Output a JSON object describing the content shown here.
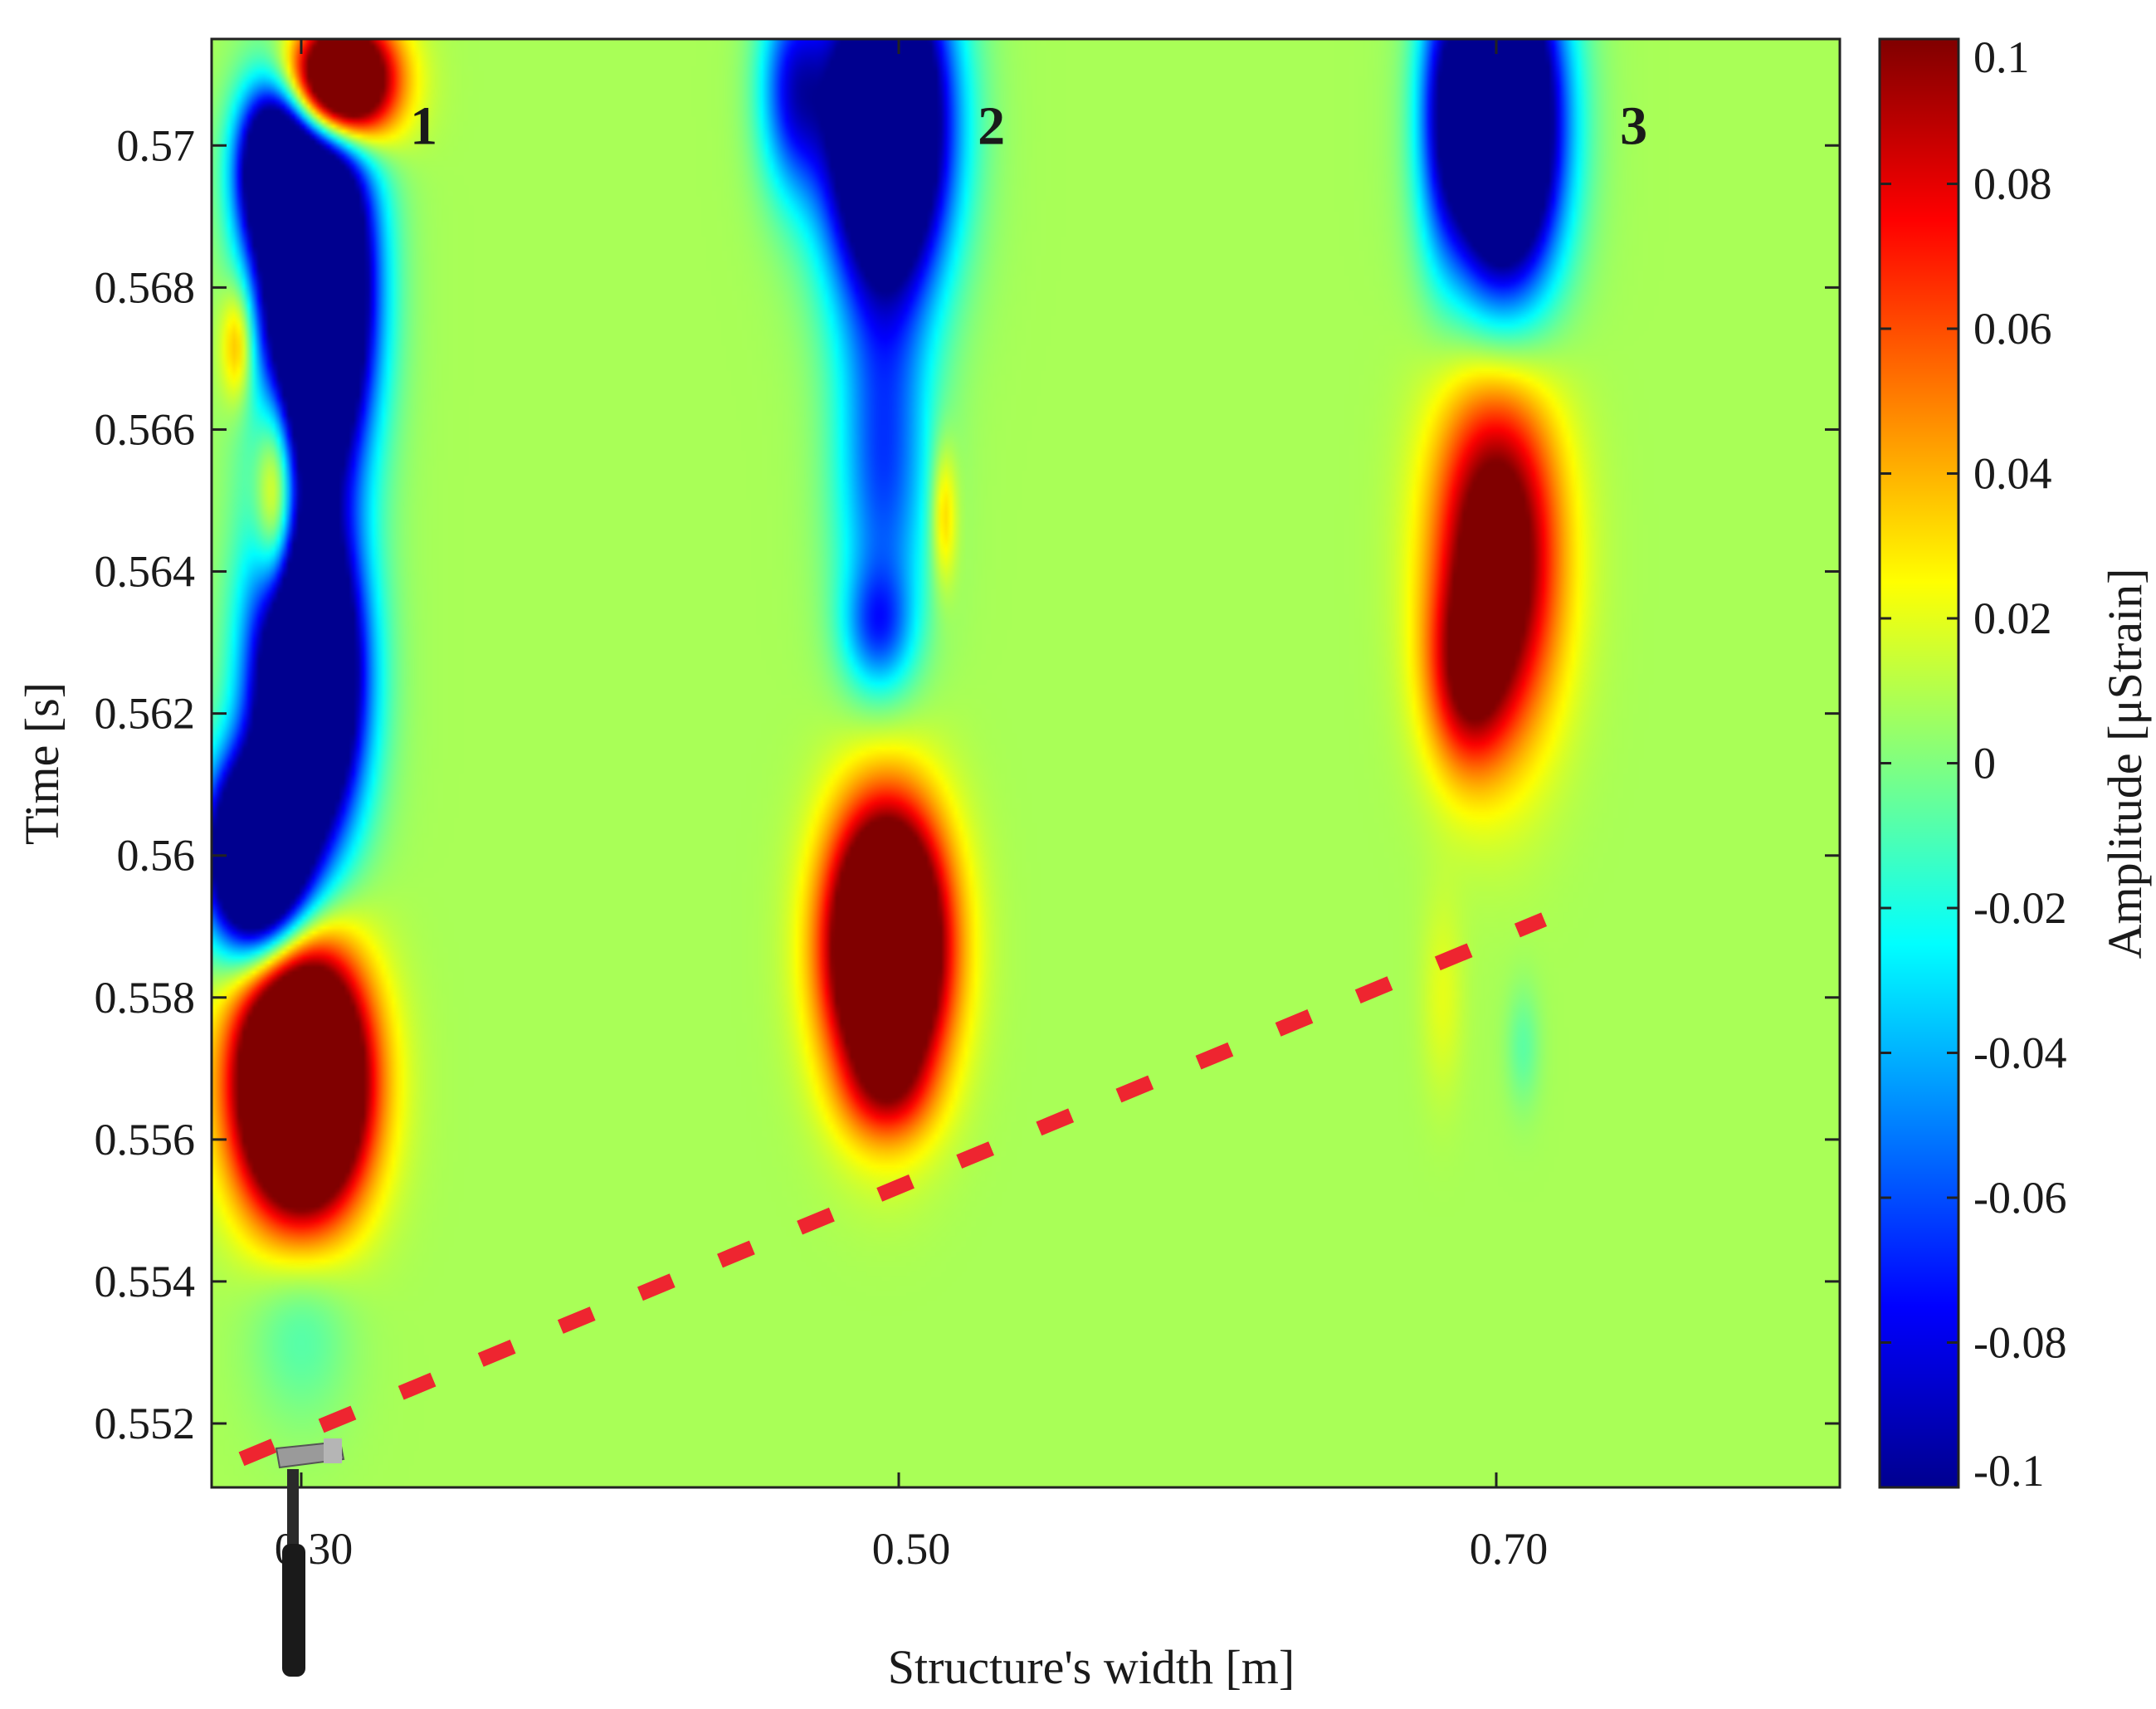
{
  "chart_data": {
    "type": "heatmap",
    "title": "",
    "xlabel": "Structure's width [m]",
    "ylabel": "Time [s]",
    "xlim": [
      0.27,
      0.815
    ],
    "ylim": [
      0.5511,
      0.5715
    ],
    "x_ticks": [
      0.3,
      0.5,
      0.7
    ],
    "x_tick_labels": [
      "0.30",
      "0.50",
      "0.70"
    ],
    "y_ticks": [
      0.552,
      0.554,
      0.556,
      0.558,
      0.56,
      0.562,
      0.564,
      0.566,
      0.568,
      0.57
    ],
    "y_tick_labels": [
      "0.552",
      "0.554",
      "0.556",
      "0.558",
      "0.56",
      "0.562",
      "0.564",
      "0.566",
      "0.568",
      "0.57"
    ],
    "colorbar": {
      "label": "Amplitude [μStrain]",
      "colormap": "jet",
      "range": [
        -0.1,
        0.1
      ],
      "ticks": [
        0.1,
        0.08,
        0.06,
        0.04,
        0.02,
        0,
        -0.02,
        -0.04,
        -0.06,
        -0.08,
        -0.1
      ],
      "tick_labels": [
        "0.1",
        "0.08",
        "0.06",
        "0.04",
        "0.02",
        "0",
        "-0.02",
        "-0.04",
        "-0.06",
        "-0.08",
        "-0.1"
      ]
    },
    "background_value": 0.008,
    "blobs": [
      {
        "x": 0.312,
        "t": 0.5709,
        "sx": 0.012,
        "st": 0.0006,
        "a": 0.25
      },
      {
        "x": 0.29,
        "t": 0.5697,
        "sx": 0.008,
        "st": 0.0008,
        "a": -0.16
      },
      {
        "x": 0.305,
        "t": 0.568,
        "sx": 0.012,
        "st": 0.0018,
        "a": -0.3
      },
      {
        "x": 0.302,
        "t": 0.5625,
        "sx": 0.012,
        "st": 0.0015,
        "a": -0.28
      },
      {
        "x": 0.285,
        "t": 0.56,
        "sx": 0.011,
        "st": 0.0009,
        "a": -0.26
      },
      {
        "x": 0.279,
        "t": 0.5672,
        "sx": 0.004,
        "st": 0.0006,
        "a": 0.05
      },
      {
        "x": 0.292,
        "t": 0.565,
        "sx": 0.005,
        "st": 0.0012,
        "a": 0.09
      },
      {
        "x": 0.3,
        "t": 0.5568,
        "sx": 0.014,
        "st": 0.0012,
        "a": 0.3
      },
      {
        "x": 0.3,
        "t": 0.5535,
        "sx": 0.012,
        "st": 0.001,
        "a": -0.02
      },
      {
        "x": 0.496,
        "t": 0.5703,
        "sx": 0.014,
        "st": 0.0016,
        "a": -0.24
      },
      {
        "x": 0.465,
        "t": 0.5708,
        "sx": 0.008,
        "st": 0.001,
        "a": -0.08
      },
      {
        "x": 0.495,
        "t": 0.5655,
        "sx": 0.011,
        "st": 0.0018,
        "a": -0.07
      },
      {
        "x": 0.493,
        "t": 0.5632,
        "sx": 0.008,
        "st": 0.0006,
        "a": -0.05
      },
      {
        "x": 0.515,
        "t": 0.5648,
        "sx": 0.003,
        "st": 0.0007,
        "a": 0.035
      },
      {
        "x": 0.496,
        "t": 0.5587,
        "sx": 0.013,
        "st": 0.0013,
        "a": 0.25
      },
      {
        "x": 0.496,
        "t": 0.5567,
        "sx": 0.01,
        "st": 0.0005,
        "a": 0.03
      },
      {
        "x": 0.702,
        "t": 0.5703,
        "sx": 0.013,
        "st": 0.0016,
        "a": -0.25
      },
      {
        "x": 0.682,
        "t": 0.5705,
        "sx": 0.006,
        "st": 0.0014,
        "a": -0.05
      },
      {
        "x": 0.7,
        "t": 0.5642,
        "sx": 0.014,
        "st": 0.0017,
        "a": 0.13
      },
      {
        "x": 0.69,
        "t": 0.5625,
        "sx": 0.009,
        "st": 0.0009,
        "a": 0.06
      },
      {
        "x": 0.682,
        "t": 0.558,
        "sx": 0.005,
        "st": 0.001,
        "a": 0.012
      },
      {
        "x": 0.709,
        "t": 0.5573,
        "sx": 0.004,
        "st": 0.0006,
        "a": -0.015
      }
    ],
    "wave_front_line": {
      "x": [
        0.28,
        0.716
      ],
      "t": [
        0.5515,
        0.5591
      ]
    },
    "annotations": [
      {
        "text": "1",
        "x": 0.341,
        "t": 0.5703
      },
      {
        "text": "2",
        "x": 0.531,
        "t": 0.5703
      },
      {
        "text": "3",
        "x": 0.746,
        "t": 0.5703
      }
    ]
  },
  "hammer_icon": "hammer-icon"
}
